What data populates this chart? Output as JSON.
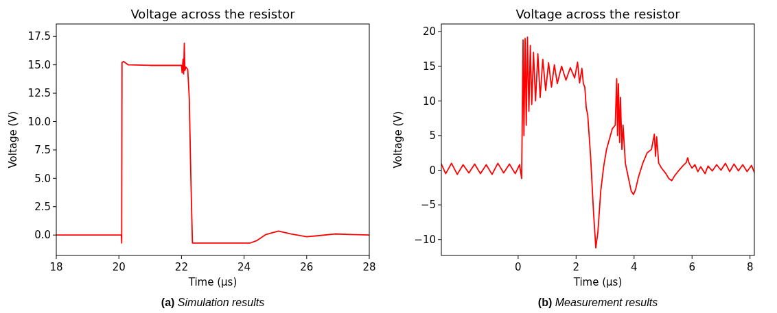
{
  "chart_data": [
    {
      "type": "line",
      "title": "Voltage across the resistor",
      "xlabel": "Time (μs)",
      "ylabel": "Voltage (V)",
      "annotations": [
        "(a) Simulation results"
      ],
      "xlim": [
        18,
        28
      ],
      "xticks": [
        18,
        20,
        22,
        24,
        26,
        28
      ],
      "ylim": [
        -1.8,
        18.6
      ],
      "yticks": [
        {
          "value": 0,
          "label": "0.0"
        },
        {
          "value": 2.5,
          "label": "2.5"
        },
        {
          "value": 5,
          "label": "5.0"
        },
        {
          "value": 7.5,
          "label": "7.5"
        },
        {
          "value": 10,
          "label": "10.0"
        },
        {
          "value": 12.5,
          "label": "12.5"
        },
        {
          "value": 15,
          "label": "15.0"
        },
        {
          "value": 17.5,
          "label": "17.5"
        }
      ],
      "series": [
        {
          "color": "#ff0000",
          "x": [
            18,
            20.08,
            20.09,
            20.1,
            20.15,
            20.3,
            21,
            22,
            22.02,
            22.05,
            22.07,
            22.09,
            22.11,
            22.14,
            22.2,
            22.25,
            22.3,
            22.35,
            24.2,
            24.4,
            24.7,
            25.1,
            25.5,
            26,
            26.4,
            26.9,
            27.4,
            28
          ],
          "values": [
            0,
            0,
            -0.7,
            15.2,
            15.3,
            15.0,
            14.95,
            14.95,
            14.3,
            15.5,
            14.2,
            16.9,
            14.5,
            14.8,
            14.6,
            12,
            5,
            -0.7,
            -0.7,
            -0.5,
            0.05,
            0.35,
            0.1,
            -0.15,
            -0.05,
            0.1,
            0.05,
            0
          ]
        }
      ]
    },
    {
      "type": "line",
      "title": "Voltage across the resistor",
      "xlabel": "Time (μs)",
      "ylabel": "Voltage (V)",
      "annotations": [
        "(b) Measurement results"
      ],
      "xlim": [
        -2.65,
        8.15
      ],
      "xticks": [
        0,
        2,
        4,
        6,
        8
      ],
      "ylim": [
        -12.3,
        21.1
      ],
      "yticks": [
        {
          "value": -10,
          "label": "−10"
        },
        {
          "value": -5,
          "label": "−5"
        },
        0,
        5,
        10,
        15,
        20
      ],
      "series": [
        {
          "color": "#ff0000",
          "x": [
            -2.65,
            -2.5,
            -2.3,
            -2.1,
            -1.9,
            -1.7,
            -1.5,
            -1.3,
            -1.1,
            -0.9,
            -0.7,
            -0.5,
            -0.3,
            -0.1,
            0.05,
            0.12,
            0.17,
            0.2,
            0.24,
            0.28,
            0.32,
            0.37,
            0.42,
            0.47,
            0.53,
            0.6,
            0.68,
            0.76,
            0.85,
            0.95,
            1.05,
            1.15,
            1.25,
            1.35,
            1.5,
            1.65,
            1.8,
            1.95,
            2.05,
            2.12,
            2.2,
            2.25,
            2.3,
            2.35,
            2.4,
            2.5,
            2.6,
            2.68,
            2.75,
            2.85,
            2.95,
            3.05,
            3.15,
            3.25,
            3.35,
            3.4,
            3.43,
            3.46,
            3.5,
            3.53,
            3.58,
            3.62,
            3.7,
            3.8,
            3.9,
            3.98,
            4.05,
            4.15,
            4.3,
            4.45,
            4.6,
            4.7,
            4.74,
            4.78,
            4.85,
            4.95,
            5.1,
            5.2,
            5.3,
            5.4,
            5.55,
            5.7,
            5.8,
            5.85,
            5.9,
            6.0,
            6.1,
            6.2,
            6.3,
            6.45,
            6.55,
            6.7,
            6.85,
            7,
            7.15,
            7.3,
            7.45,
            7.6,
            7.75,
            7.9,
            8.05,
            8.15
          ],
          "values": [
            0.9,
            -0.5,
            1.0,
            -0.6,
            0.8,
            -0.4,
            0.9,
            -0.5,
            0.8,
            -0.6,
            1.0,
            -0.4,
            0.9,
            -0.5,
            0.8,
            -1.2,
            18.8,
            5,
            19,
            6.5,
            19.2,
            8.5,
            18,
            9.5,
            17,
            10,
            16.8,
            10.5,
            16,
            11.5,
            15.5,
            12,
            15.2,
            12.5,
            15,
            13,
            14.8,
            13.3,
            15.6,
            12.6,
            14.7,
            12.5,
            12,
            9,
            8,
            2,
            -6,
            -11.2,
            -9,
            -3,
            0.5,
            3,
            4.5,
            6,
            6.5,
            13.2,
            5,
            12.5,
            4,
            10.5,
            3,
            6.5,
            1,
            -1,
            -3,
            -3.5,
            -2.8,
            -1,
            1,
            2.5,
            3,
            5.2,
            2,
            4.8,
            1,
            0.3,
            -0.5,
            -1.2,
            -1.5,
            -0.8,
            0,
            0.7,
            1.1,
            1.8,
            1,
            0.3,
            0.8,
            -0.2,
            0.5,
            -0.5,
            0.6,
            -0.1,
            0.8,
            0,
            1,
            -0.2,
            0.9,
            -0.1,
            0.8,
            -0.2,
            0.7,
            -0.3
          ]
        }
      ]
    }
  ]
}
